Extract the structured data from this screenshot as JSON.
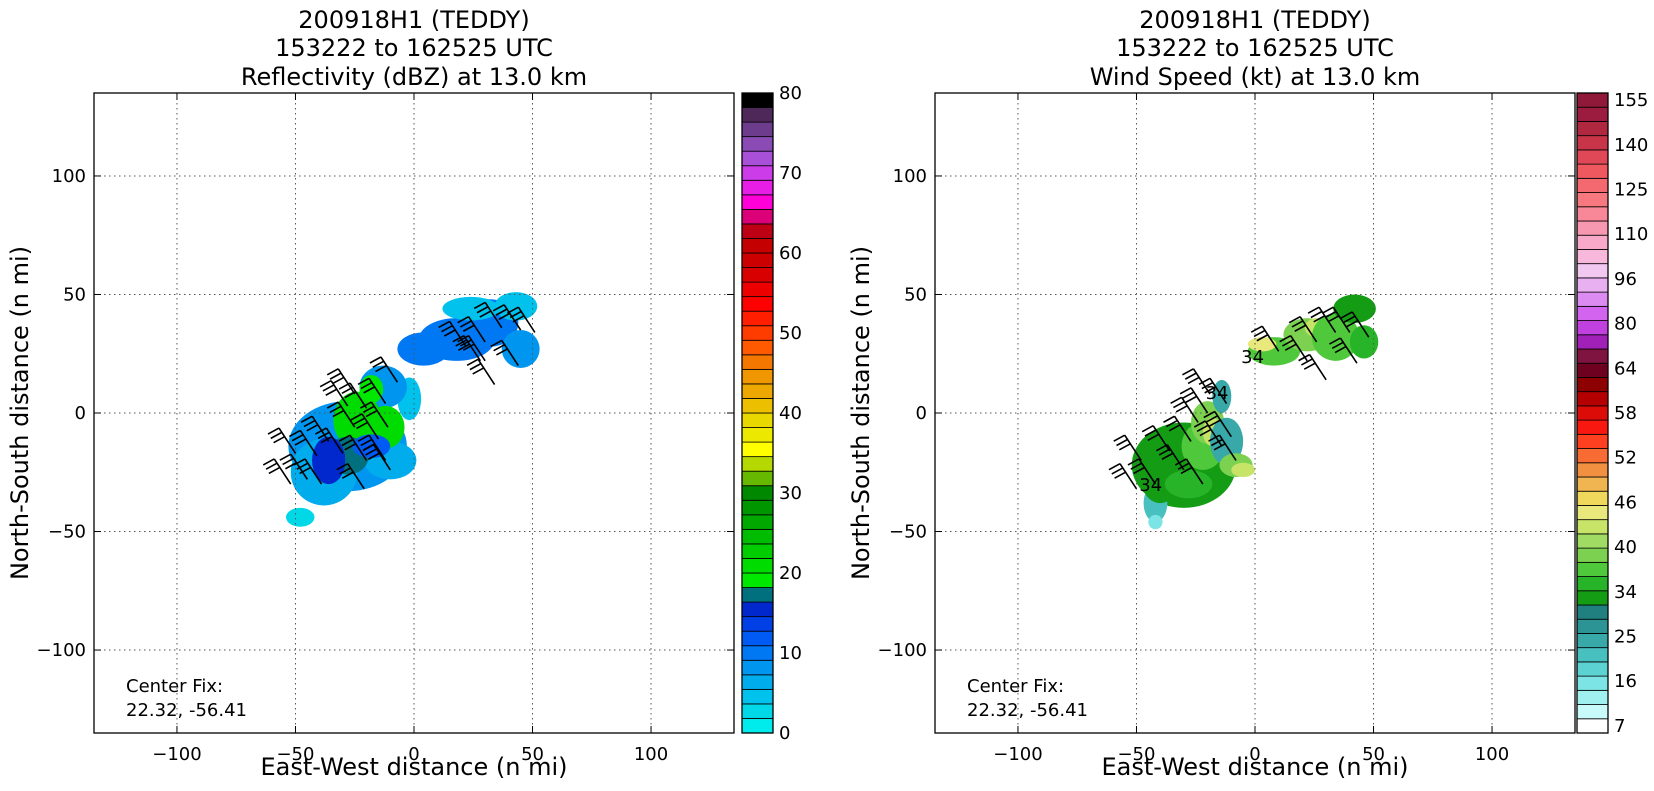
{
  "chart_data": [
    {
      "type": "heatmap",
      "title_lines": [
        "200918H1 (TEDDY)",
        "153222 to 162525 UTC",
        "Reflectivity (dBZ) at 13.0 km"
      ],
      "xlabel": "East-West distance (n mi)",
      "ylabel": "North-South distance (n mi)",
      "xlim": [
        -135,
        135
      ],
      "ylim": [
        -135,
        135
      ],
      "xticks": [
        -100,
        -50,
        0,
        50,
        100
      ],
      "yticks": [
        -100,
        -50,
        0,
        50,
        100
      ],
      "grid": true,
      "annotation_lines": [
        "Center Fix:",
        "22.32, -56.41"
      ],
      "colorbar": {
        "min": 0,
        "max": 80,
        "tick_values": [
          0,
          10,
          20,
          30,
          40,
          50,
          60,
          70,
          80
        ],
        "tick_labels": [
          "0",
          "10",
          "20",
          "30",
          "40",
          "50",
          "60",
          "70",
          "80"
        ],
        "colors": [
          "#00ecec",
          "#00d8e8",
          "#00c2ec",
          "#00acec",
          "#0096f0",
          "#0078f4",
          "#005af4",
          "#0040e4",
          "#0028cc",
          "#00707e",
          "#00e800",
          "#00dc00",
          "#00cc00",
          "#00bc00",
          "#00a800",
          "#009600",
          "#008800",
          "#66b800",
          "#b4d800",
          "#ffff00",
          "#ece800",
          "#e8d800",
          "#ecc000",
          "#eca800",
          "#f09600",
          "#f47800",
          "#ff5a00",
          "#ff3c00",
          "#ff1e00",
          "#ff0000",
          "#ec0000",
          "#d80000",
          "#cc0000",
          "#c40000",
          "#be0014",
          "#dc0078",
          "#ff00d8",
          "#e61ee6",
          "#cc3ce8",
          "#a850d8",
          "#8a4cb4",
          "#6e3c8c",
          "#4e2858",
          "#000000"
        ]
      },
      "field_blobs": [
        {
          "x": -28,
          "y": -14,
          "rx": 25,
          "ry": 19,
          "v": 9
        },
        {
          "x": -38,
          "y": -25,
          "rx": 14,
          "ry": 14,
          "v": 7
        },
        {
          "x": -10,
          "y": -20,
          "rx": 11,
          "ry": 8,
          "v": 6
        },
        {
          "x": -2,
          "y": 6,
          "rx": 5,
          "ry": 9,
          "v": 5
        },
        {
          "x": -48,
          "y": -44,
          "rx": 6,
          "ry": 4,
          "v": 3
        },
        {
          "x": -13,
          "y": 11,
          "rx": 10,
          "ry": 9,
          "v": 9
        },
        {
          "x": 4,
          "y": 27,
          "rx": 11,
          "ry": 7,
          "v": 10
        },
        {
          "x": 18,
          "y": 31,
          "rx": 16,
          "ry": 9,
          "v": 10
        },
        {
          "x": 32,
          "y": 38,
          "rx": 12,
          "ry": 10,
          "v": 10
        },
        {
          "x": 43,
          "y": 45,
          "rx": 9,
          "ry": 6,
          "v": 5
        },
        {
          "x": 45,
          "y": 27,
          "rx": 8,
          "ry": 8,
          "v": 9
        },
        {
          "x": 24,
          "y": 44,
          "rx": 12,
          "ry": 5,
          "v": 4
        },
        {
          "x": -24,
          "y": -3,
          "rx": 10,
          "ry": 12,
          "v": 20
        },
        {
          "x": -12,
          "y": -6,
          "rx": 8,
          "ry": 9,
          "v": 21
        },
        {
          "x": -18,
          "y": 10,
          "rx": 5,
          "ry": 6,
          "v": 19
        },
        {
          "x": -28,
          "y": -18,
          "rx": 9,
          "ry": 8,
          "v": 18
        },
        {
          "x": -36,
          "y": -20,
          "rx": 7,
          "ry": 10,
          "v": 15
        },
        {
          "x": -18,
          "y": -14,
          "rx": 8,
          "ry": 5,
          "v": 12
        }
      ],
      "barbs": [
        {
          "x": -52,
          "y": -30
        },
        {
          "x": -50,
          "y": -17
        },
        {
          "x": -45,
          "y": -28
        },
        {
          "x": -39,
          "y": -30
        },
        {
          "x": -41,
          "y": -18
        },
        {
          "x": -36,
          "y": -12
        },
        {
          "x": -30,
          "y": -17
        },
        {
          "x": -20,
          "y": -20
        },
        {
          "x": -25,
          "y": -6
        },
        {
          "x": -28,
          "y": 3
        },
        {
          "x": -20,
          "y": 2
        },
        {
          "x": -15,
          "y": -11
        },
        {
          "x": -11,
          "y": -6
        },
        {
          "x": -12,
          "y": 4
        },
        {
          "x": -21,
          "y": -32
        },
        {
          "x": -12,
          "y": -20
        },
        {
          "x": -10,
          "y": -24
        },
        {
          "x": -25,
          "y": 8
        },
        {
          "x": -7,
          "y": 13
        },
        {
          "x": 22,
          "y": 28
        },
        {
          "x": 30,
          "y": 22
        },
        {
          "x": 30,
          "y": 30
        },
        {
          "x": 34,
          "y": 12
        },
        {
          "x": 37,
          "y": 36
        },
        {
          "x": 45,
          "y": 35
        },
        {
          "x": 51,
          "y": 34
        },
        {
          "x": 44,
          "y": 20
        },
        {
          "x": 28,
          "y": 22
        }
      ]
    },
    {
      "type": "heatmap",
      "title_lines": [
        "200918H1 (TEDDY)",
        "153222 to 162525 UTC",
        "Wind Speed (kt) at 13.0 km"
      ],
      "xlabel": "East-West distance (n mi)",
      "ylabel": "North-South distance (n mi)",
      "xlim": [
        -135,
        135
      ],
      "ylim": [
        -135,
        135
      ],
      "xticks": [
        -100,
        -50,
        0,
        50,
        100
      ],
      "yticks": [
        -100,
        -50,
        0,
        50,
        100
      ],
      "grid": true,
      "annotation_lines": [
        "Center Fix:",
        "22.32, -56.41"
      ],
      "contour_labels": [
        {
          "x": -1,
          "y": 21,
          "text": "34"
        },
        {
          "x": -16,
          "y": 6,
          "text": "34"
        },
        {
          "x": -44,
          "y": -33,
          "text": "34"
        }
      ],
      "colorbar": {
        "min": 7,
        "max": 160,
        "tick_labels": [
          "7",
          "16",
          "25",
          "34",
          "40",
          "46",
          "52",
          "58",
          "64",
          "80",
          "96",
          "110",
          "125",
          "140",
          "155"
        ],
        "colors": [
          "#ffffff",
          "#c8fafa",
          "#a0f0f0",
          "#7ce4e4",
          "#5cd2d2",
          "#48c0c0",
          "#38a8a8",
          "#2c9494",
          "#208080",
          "#149c14",
          "#28b428",
          "#50c83c",
          "#7cd250",
          "#a0dc64",
          "#c8e468",
          "#e8e87c",
          "#f0d85c",
          "#f0b450",
          "#f09040",
          "#f86c34",
          "#ff4020",
          "#f81810",
          "#dc0c08",
          "#b40000",
          "#8c0000",
          "#6e0020",
          "#801440",
          "#a020b8",
          "#c040e0",
          "#d264f0",
          "#dc8cf0",
          "#e8b0f0",
          "#f0c8f0",
          "#f8b8dc",
          "#f8a8c8",
          "#f898b0",
          "#f88898",
          "#f87880",
          "#f46870",
          "#f05860",
          "#e04858",
          "#c83448",
          "#b02840",
          "#9c1c40",
          "#901838"
        ]
      },
      "field_blobs": [
        {
          "x": -30,
          "y": -22,
          "rx": 22,
          "ry": 18,
          "v": 38
        },
        {
          "x": -42,
          "y": -38,
          "rx": 5,
          "ry": 8,
          "v": 27
        },
        {
          "x": -40,
          "y": -28,
          "rx": 8,
          "ry": 10,
          "v": 40
        },
        {
          "x": -22,
          "y": -14,
          "rx": 9,
          "ry": 10,
          "v": 45
        },
        {
          "x": -20,
          "y": -4,
          "rx": 7,
          "ry": 9,
          "v": 50
        },
        {
          "x": -18,
          "y": -8,
          "rx": 4,
          "ry": 6,
          "v": 57
        },
        {
          "x": -12,
          "y": -12,
          "rx": 7,
          "ry": 10,
          "v": 28
        },
        {
          "x": -14,
          "y": 7,
          "rx": 4,
          "ry": 7,
          "v": 29
        },
        {
          "x": -8,
          "y": -22,
          "rx": 7,
          "ry": 5,
          "v": 48
        },
        {
          "x": -5,
          "y": -24,
          "rx": 5,
          "ry": 3,
          "v": 56
        },
        {
          "x": -28,
          "y": -30,
          "rx": 10,
          "ry": 6,
          "v": 43
        },
        {
          "x": -42,
          "y": -46,
          "rx": 3,
          "ry": 3,
          "v": 20
        },
        {
          "x": 8,
          "y": 26,
          "rx": 11,
          "ry": 6,
          "v": 47
        },
        {
          "x": 3,
          "y": 29,
          "rx": 6,
          "ry": 3,
          "v": 60
        },
        {
          "x": 22,
          "y": 33,
          "rx": 10,
          "ry": 7,
          "v": 50
        },
        {
          "x": 26,
          "y": 36,
          "rx": 5,
          "ry": 4,
          "v": 56
        },
        {
          "x": 34,
          "y": 32,
          "rx": 10,
          "ry": 10,
          "v": 47
        },
        {
          "x": 42,
          "y": 44,
          "rx": 9,
          "ry": 6,
          "v": 39
        },
        {
          "x": 46,
          "y": 30,
          "rx": 6,
          "ry": 7,
          "v": 41
        }
      ],
      "barbs": [
        {
          "x": -50,
          "y": -32
        },
        {
          "x": -48,
          "y": -20
        },
        {
          "x": -42,
          "y": -30
        },
        {
          "x": -36,
          "y": -16
        },
        {
          "x": -30,
          "y": -24
        },
        {
          "x": -22,
          "y": -30
        },
        {
          "x": -24,
          "y": -4
        },
        {
          "x": -20,
          "y": 0
        },
        {
          "x": -14,
          "y": -14
        },
        {
          "x": -10,
          "y": -10
        },
        {
          "x": -8,
          "y": -20
        },
        {
          "x": -27,
          "y": -12
        },
        {
          "x": -12,
          "y": 4
        },
        {
          "x": 10,
          "y": 26
        },
        {
          "x": 22,
          "y": 22
        },
        {
          "x": 26,
          "y": 30
        },
        {
          "x": 30,
          "y": 14
        },
        {
          "x": 34,
          "y": 34
        },
        {
          "x": 40,
          "y": 34
        },
        {
          "x": 48,
          "y": 32
        },
        {
          "x": 43,
          "y": 21
        },
        {
          "x": -19,
          "y": 8
        }
      ]
    }
  ]
}
